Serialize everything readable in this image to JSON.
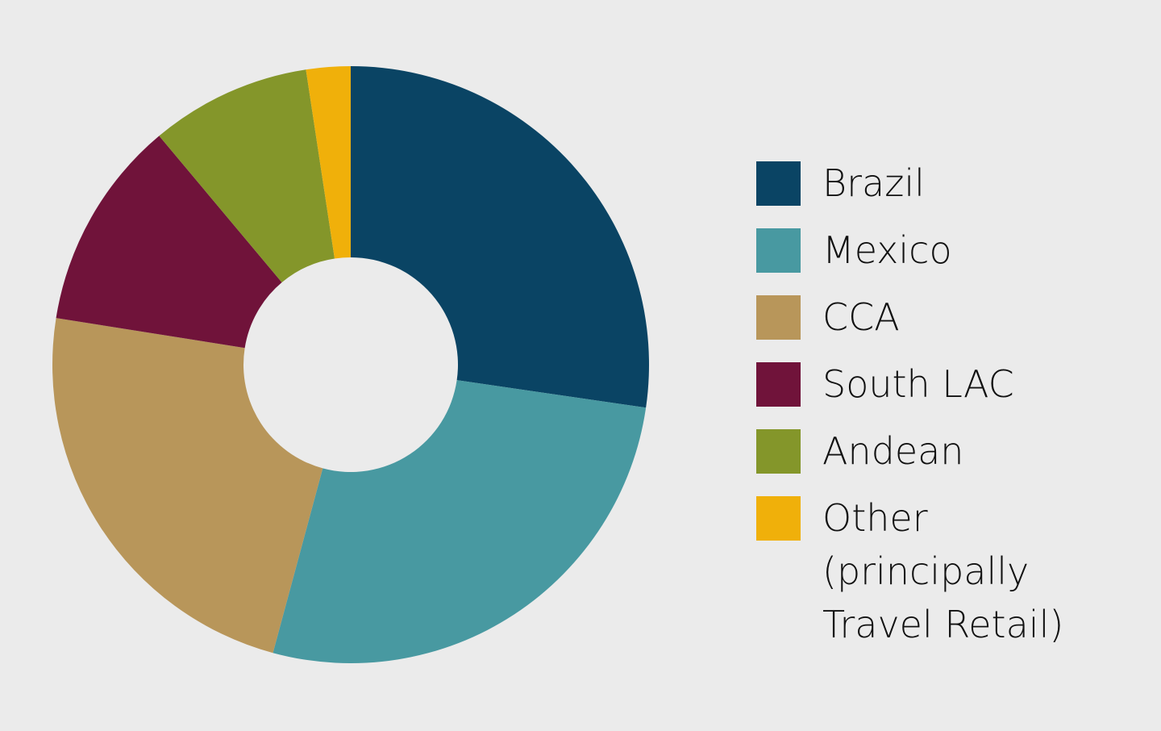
{
  "chart_data": {
    "type": "pie",
    "categories": [
      "Brazil",
      "Mexico",
      "CCA",
      "South LAC",
      "Andean",
      "Other (principally Travel Retail)"
    ],
    "values": [
      27.3,
      26.9,
      23.3,
      11.4,
      8.7,
      2.4
    ],
    "colors": [
      "#0a4464",
      "#4899a1",
      "#b8965a",
      "#70133a",
      "#84962a",
      "#f0b00a"
    ],
    "legend": "right"
  }
}
